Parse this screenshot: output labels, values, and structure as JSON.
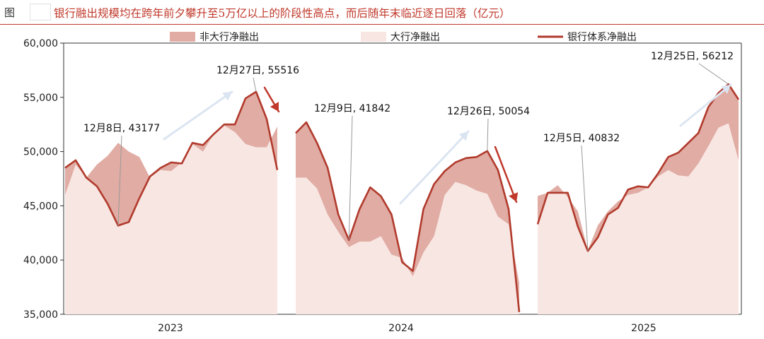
{
  "figure_label": "图",
  "title": "银行融出规模均在跨年前夕攀升至5万亿以上的阶段性高点，而后随年末临近逐日回落（亿元）",
  "colors": {
    "non_big": "#e0aca4",
    "big": "#f8e6e2",
    "total": "#b13a2c",
    "arrow_up": "#dbe5f1",
    "arrow_down": "#c0392b",
    "callout": "#999999"
  },
  "chart_data": {
    "type": "area",
    "title": "银行融出规模均在跨年前夕攀升至5万亿以上的阶段性高点，而后随年末临近逐日回落（亿元）",
    "ylim": [
      35000,
      60000
    ],
    "y_ticks": [
      60000,
      55000,
      50000,
      45000,
      40000,
      35000
    ],
    "y_tick_labels": [
      "60,000",
      "55,000",
      "50,000",
      "45,000",
      "40,000",
      "35,000"
    ],
    "grid": false,
    "legend_position": "top",
    "legend": [
      "非大行净融出",
      "大行净融出",
      "银行体系净融出"
    ],
    "panels": [
      {
        "x_label": "2023",
        "x_start": 0,
        "x_end": 41,
        "total": [
          48500,
          49200,
          47600,
          46800,
          45200,
          43177,
          43500,
          45700,
          47700,
          48500,
          49000,
          48900,
          50800,
          50600,
          51600,
          52500,
          52500,
          54900,
          55516,
          53000,
          48300
        ],
        "big": [
          46000,
          48800,
          47600,
          48800,
          49600,
          50800,
          50000,
          49500,
          47600,
          48300,
          48200,
          49000,
          50700,
          50000,
          51600,
          52400,
          51800,
          50700,
          50400,
          50400,
          52300
        ]
      },
      {
        "x_label": "2024",
        "x_start": 0,
        "x_end": 40,
        "total": [
          51700,
          52700,
          50800,
          48500,
          44200,
          41842,
          44700,
          46700,
          45900,
          44200,
          39800,
          39000,
          44700,
          47000,
          48200,
          49000,
          49400,
          49500,
          50054,
          48300,
          44700,
          35200
        ],
        "big": [
          47600,
          47600,
          46600,
          44200,
          42600,
          41200,
          41700,
          41700,
          42200,
          40500,
          40200,
          38500,
          40700,
          42200,
          46000,
          47200,
          46900,
          46400,
          46100,
          44000,
          43300,
          37900
        ]
      },
      {
        "x_label": "2025",
        "x_start": 0,
        "x_end": 50,
        "total": [
          43300,
          46200,
          46200,
          46200,
          43100,
          40832,
          42100,
          44200,
          44800,
          46500,
          46800,
          46700,
          48000,
          49500,
          49900,
          50800,
          51700,
          54100,
          55400,
          56212,
          54800
        ],
        "big": [
          45900,
          46200,
          46900,
          45800,
          44500,
          40900,
          43200,
          44500,
          45400,
          46000,
          46200,
          46700,
          47700,
          48300,
          47800,
          47700,
          48900,
          50500,
          52200,
          52600,
          49200
        ]
      }
    ],
    "annotations": [
      {
        "text": "12月8日, 43177",
        "panel": 0,
        "index": 5
      },
      {
        "text": "12月27日, 55516",
        "panel": 0,
        "index": 18
      },
      {
        "text": "12月9日, 41842",
        "panel": 1,
        "index": 5
      },
      {
        "text": "12月26日, 50054",
        "panel": 1,
        "index": 18
      },
      {
        "text": "12月5日, 40832",
        "panel": 2,
        "index": 5
      },
      {
        "text": "12月25日, 56212",
        "panel": 2,
        "index": 19
      }
    ]
  }
}
